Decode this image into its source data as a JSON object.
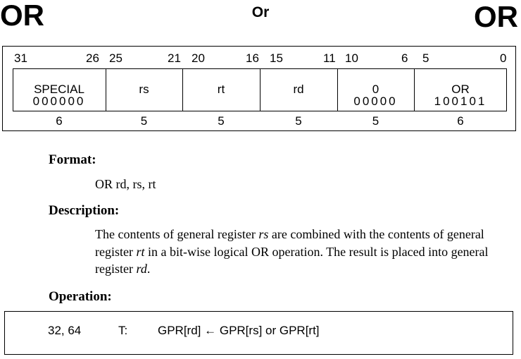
{
  "header": {
    "mnemonic_left": "OR",
    "title": "Or",
    "mnemonic_right": "OR"
  },
  "encoding": {
    "bit_numbers": [
      "31",
      "26",
      "25",
      "21",
      "20",
      "16",
      "15",
      "11",
      "10",
      "6",
      "5",
      "0"
    ],
    "fields": [
      {
        "name": "SPECIAL",
        "bits": "000000",
        "width": "6"
      },
      {
        "name": "rs",
        "bits": "",
        "width": "5"
      },
      {
        "name": "rt",
        "bits": "",
        "width": "5"
      },
      {
        "name": "rd",
        "bits": "",
        "width": "5"
      },
      {
        "name": "0",
        "bits": "00000",
        "width": "5"
      },
      {
        "name": "OR",
        "bits": "100101",
        "width": "6"
      }
    ]
  },
  "format": {
    "heading": "Format:",
    "syntax": "OR rd, rs, rt"
  },
  "description": {
    "heading": "Description:",
    "parts": [
      {
        "text": "The contents of general register ",
        "italic": false
      },
      {
        "text": "rs",
        "italic": true
      },
      {
        "text": " are combined with the contents of general register ",
        "italic": false
      },
      {
        "text": "rt",
        "italic": true
      },
      {
        "text": " in a bit-wise logical OR operation.  The result is placed into general register ",
        "italic": false
      },
      {
        "text": "rd",
        "italic": true
      },
      {
        "text": ".",
        "italic": false
      }
    ]
  },
  "operation": {
    "heading": "Operation:",
    "arch": "32, 64",
    "time": "T:",
    "expression": "GPR[rd] ← GPR[rs] or GPR[rt]"
  }
}
